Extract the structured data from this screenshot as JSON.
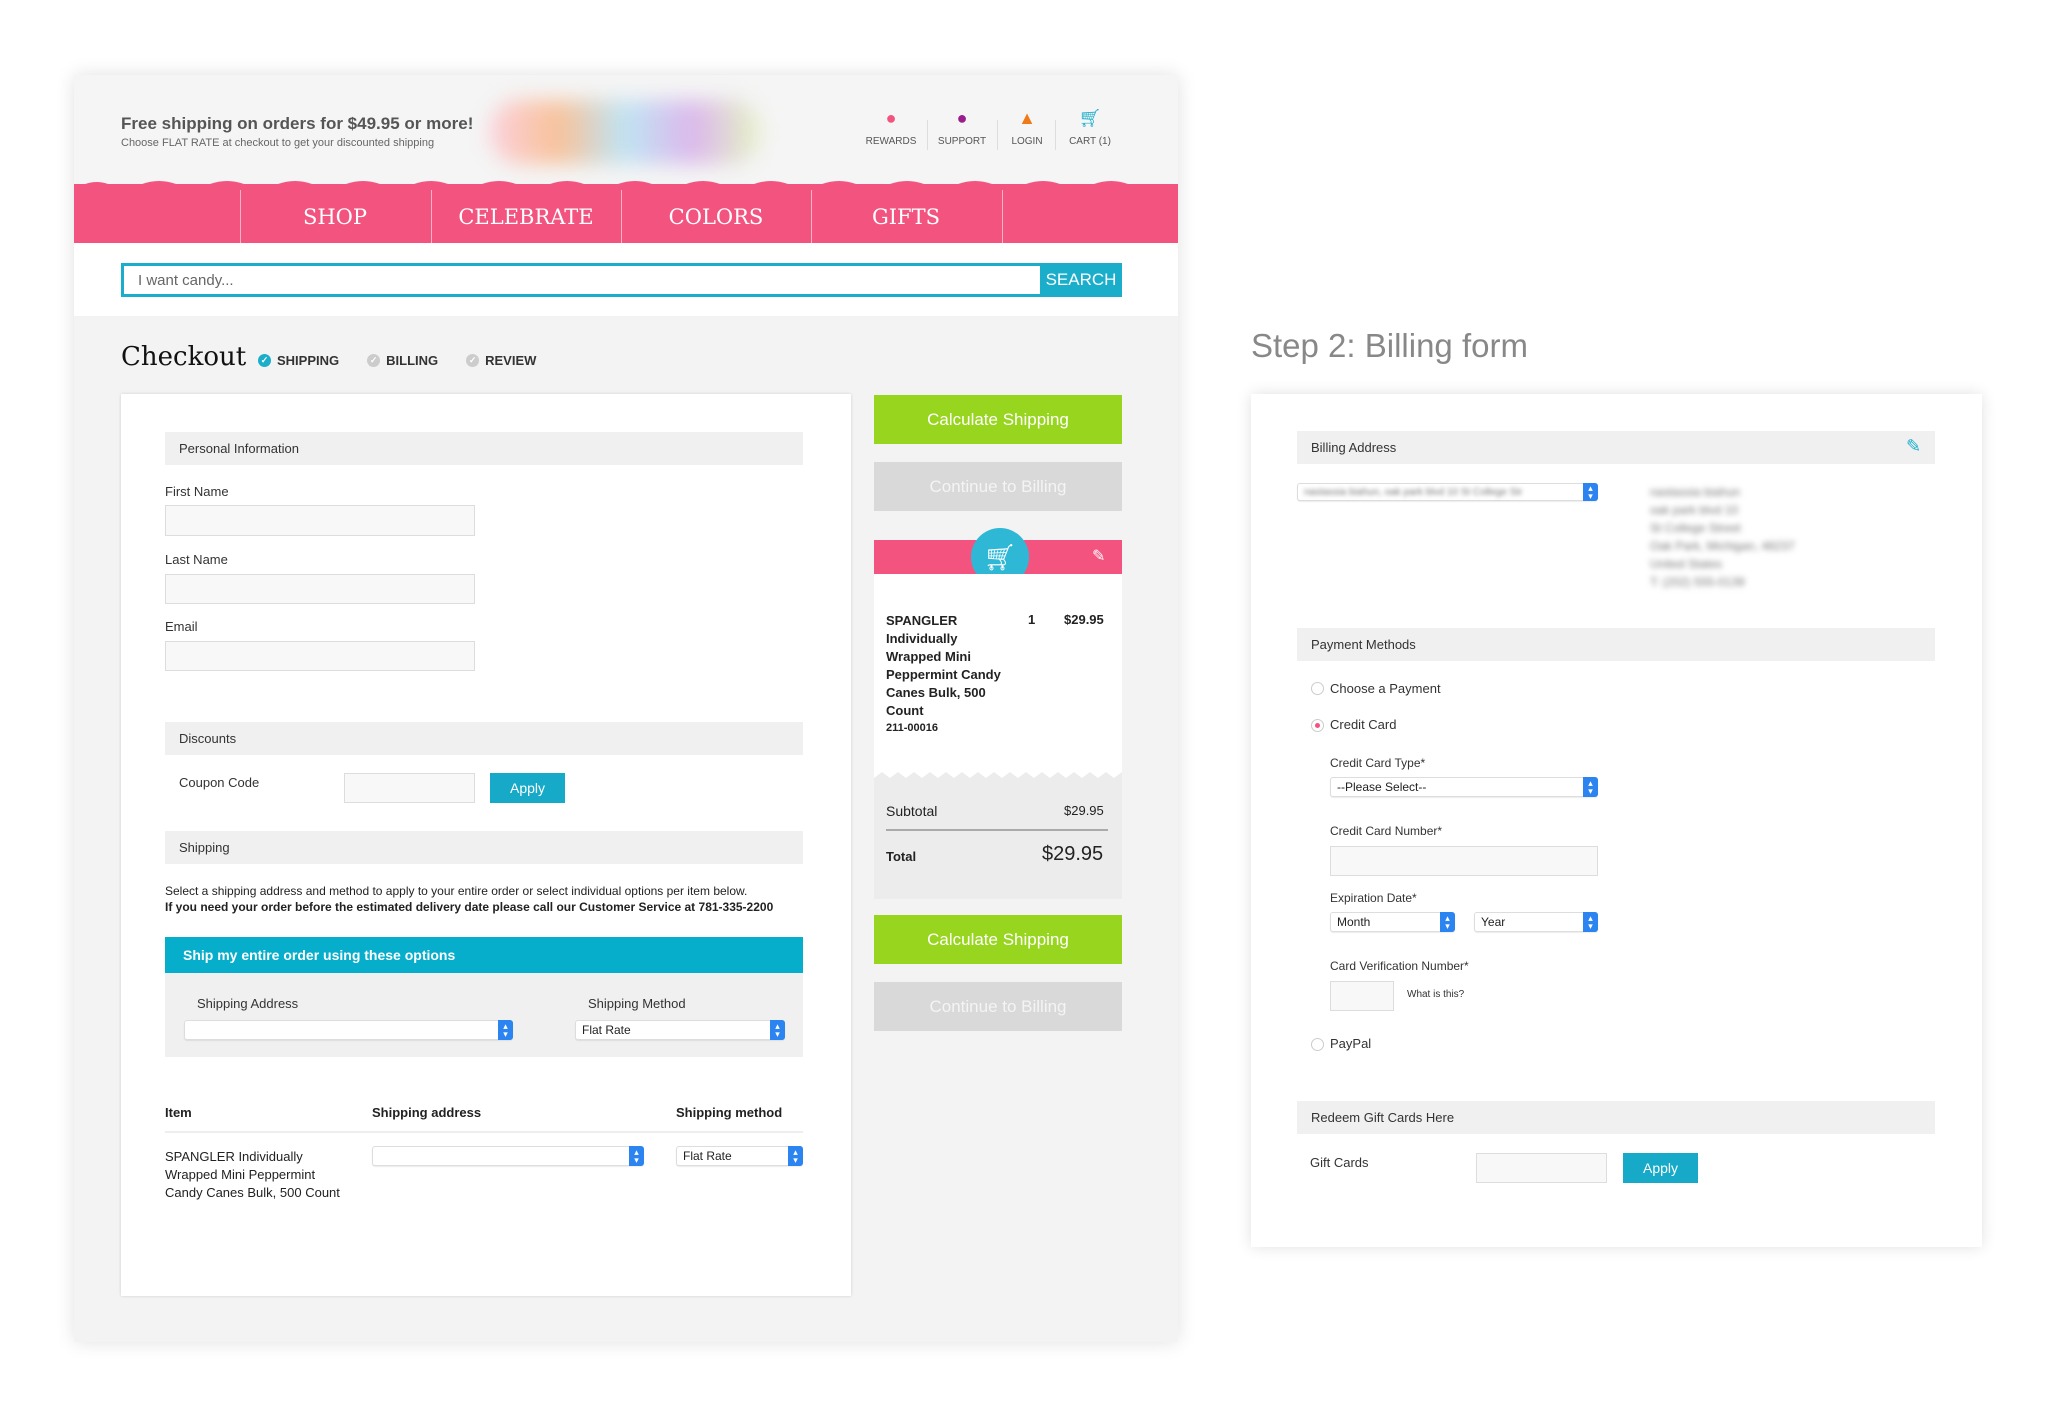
{
  "header": {
    "promo_title": "Free shipping on orders for $49.95 or more!",
    "promo_sub": "Choose FLAT RATE at checkout to get your discounted shipping",
    "links": [
      {
        "label": "REWARDS",
        "icon": "piggy-bank-icon",
        "color": "#f2547f"
      },
      {
        "label": "SUPPORT",
        "icon": "chat-bubble-icon",
        "color": "#9b1c8c"
      },
      {
        "label": "LOGIN",
        "icon": "user-icon",
        "color": "#f07a1a"
      },
      {
        "label": "CART (1)",
        "icon": "cart-icon",
        "color": "#1aaecb"
      }
    ]
  },
  "nav": [
    "SHOP",
    "CELEBRATE",
    "COLORS",
    "GIFTS"
  ],
  "search": {
    "placeholder": "I want candy...",
    "button": "SEARCH"
  },
  "checkout": {
    "title": "Checkout",
    "steps": [
      {
        "label": "SHIPPING",
        "active": true
      },
      {
        "label": "BILLING",
        "active": false
      },
      {
        "label": "REVIEW",
        "active": false
      }
    ]
  },
  "form": {
    "personal_header": "Personal Information",
    "first_name": "First Name",
    "last_name": "Last Name",
    "email": "Email",
    "discounts_header": "Discounts",
    "coupon_label": "Coupon Code",
    "apply": "Apply",
    "shipping_header": "Shipping",
    "shipping_text1": "Select a shipping address and method to apply to your entire order or select individual options per item below.",
    "shipping_text2": "If you need your order before the estimated delivery date please call our Customer Service at 781-335-2200",
    "ship_all_bar": "Ship my entire order using these options",
    "ship_address_label": "Shipping Address",
    "ship_method_label": "Shipping Method",
    "ship_method_value": "Flat Rate",
    "table_headers": [
      "Item",
      "Shipping address",
      "Shipping method"
    ],
    "row": {
      "item": "SPANGLER Individually Wrapped Mini Peppermint Candy Canes Bulk, 500 Count",
      "method": "Flat Rate"
    }
  },
  "summary": {
    "calc": "Calculate Shipping",
    "continue": "Continue to Billing",
    "item_name": "SPANGLER Individually Wrapped Mini Peppermint Candy Canes Bulk, 500 Count",
    "qty": "1",
    "price": "$29.95",
    "sku": "211-00016",
    "subtotal_label": "Subtotal",
    "subtotal": "$29.95",
    "total_label": "Total",
    "total": "$29.95"
  },
  "billing": {
    "step_title": "Step 2: Billing form",
    "address_header": "Billing Address",
    "address_select": "nastassia biahun, oak park blvd 10 St College Str",
    "address_lines": [
      "nastassia biahun",
      "oak park blvd 10",
      "St College Street",
      "Oak Park, Michigan, 48237",
      "United States",
      "T: (202) 555-0139"
    ],
    "payment_header": "Payment Methods",
    "choose": "Choose a Payment",
    "credit_card": "Credit Card",
    "cc_type_label": "Credit Card Type*",
    "cc_type_value": "--Please Select--",
    "cc_number_label": "Credit Card Number*",
    "exp_label": "Expiration Date*",
    "month": "Month",
    "year": "Year",
    "cvn_label": "Card Verification Number*",
    "what": "What is this?",
    "paypal": "PayPal",
    "gift_header": "Redeem Gift Cards Here",
    "gift_label": "Gift Cards",
    "apply": "Apply",
    "selected_payment": "Credit Card"
  },
  "colors": {
    "pink": "#f2547f",
    "teal": "#1aaecb",
    "green": "#98d51e"
  }
}
